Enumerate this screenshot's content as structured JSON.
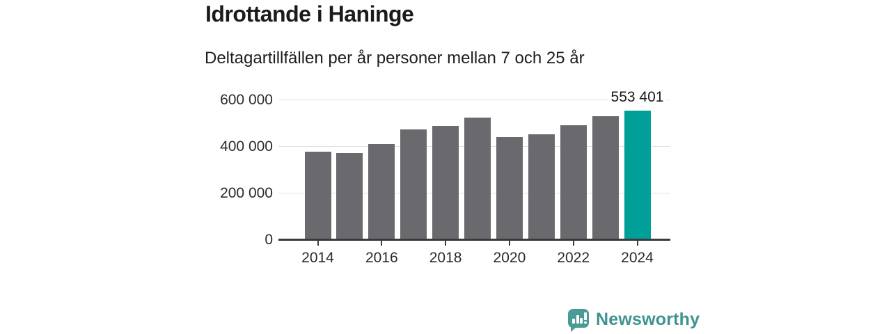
{
  "header": {
    "title": "Idrottande i Haninge",
    "subtitle": "Deltagartillfällen per år personer mellan 7 och 25 år"
  },
  "chart_data": {
    "type": "bar",
    "title": "Idrottande i Haninge",
    "subtitle": "Deltagartillfällen per år personer mellan 7 och 25 år",
    "categories": [
      2014,
      2015,
      2016,
      2017,
      2018,
      2019,
      2020,
      2021,
      2022,
      2023,
      2024
    ],
    "values": [
      379000,
      373000,
      411000,
      474000,
      488000,
      523000,
      440000,
      453000,
      491000,
      529000,
      553401
    ],
    "highlight_index": 10,
    "highlight_value_label": "553 401",
    "ylim": [
      0,
      600000
    ],
    "yticks": [
      0,
      200000,
      400000,
      600000
    ],
    "ytick_labels": [
      "0",
      "200 000",
      "400 000",
      "600 000"
    ],
    "xtick_years": [
      2014,
      2016,
      2018,
      2020,
      2022,
      2024
    ],
    "grid": true,
    "legend_position": "none",
    "bar_color": "#6a6a6e",
    "highlight_color": "#00a098"
  },
  "footer": {
    "brand_name": "Newsworthy",
    "brand_icon": "newsworthy-bar-chart-bubble-icon",
    "brand_icon_color": "#4a9b96",
    "brand_text_color": "#3f938e"
  }
}
